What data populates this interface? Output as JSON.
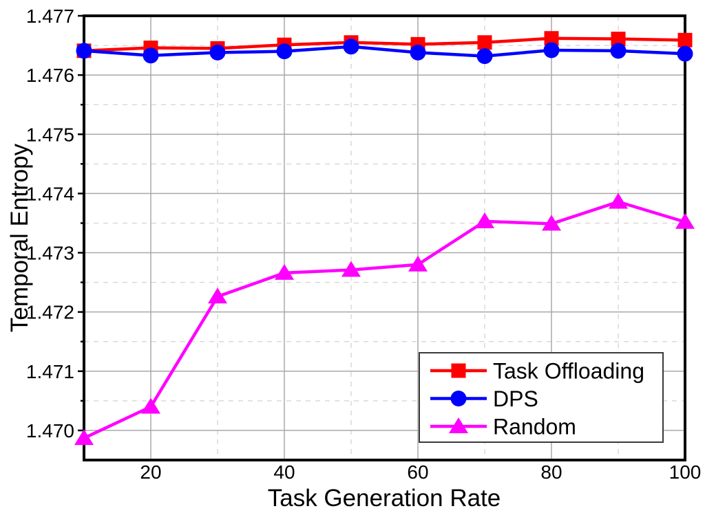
{
  "figure": {
    "background": "#ffffff",
    "frame_color": "#000000",
    "major_grid_color": "#a8a8a8",
    "minor_grid_color": "#d9d9d9"
  },
  "chart_data": {
    "type": "line",
    "title": "",
    "xlabel": "Task Generation Rate",
    "ylabel": "Temporal Entropy",
    "xlim": [
      10,
      100
    ],
    "ylim": [
      1.4695,
      1.477
    ],
    "grid": "major solid gray at every tick, minor dashed light-gray at midpoints",
    "legend_position": "bottom-right",
    "x": [
      10,
      20,
      30,
      40,
      50,
      60,
      70,
      80,
      90,
      100
    ],
    "x_major_ticks": [
      20,
      40,
      60,
      80,
      100
    ],
    "x_tick_labels": [
      "20",
      "40",
      "60",
      "80",
      "100"
    ],
    "x_minor_gridlines": [
      30,
      50,
      70,
      90
    ],
    "y_major_ticks": [
      1.47,
      1.471,
      1.472,
      1.473,
      1.474,
      1.475,
      1.476,
      1.477
    ],
    "y_tick_labels": [
      "1.470",
      "1.471",
      "1.472",
      "1.473",
      "1.474",
      "1.475",
      "1.476",
      "1.477"
    ],
    "y_minor_gridlines": [
      1.4705,
      1.4715,
      1.4725,
      1.4735,
      1.4745,
      1.4755,
      1.4765
    ],
    "series": [
      {
        "name": "Task Offloading",
        "color": "#ff0000",
        "marker": "square",
        "values": [
          1.47641,
          1.47646,
          1.47645,
          1.47651,
          1.47655,
          1.47652,
          1.47655,
          1.47662,
          1.47661,
          1.47659
        ]
      },
      {
        "name": "DPS",
        "color": "#0000ff",
        "marker": "circle",
        "values": [
          1.47641,
          1.47633,
          1.47638,
          1.4764,
          1.47648,
          1.47638,
          1.47632,
          1.47642,
          1.47641,
          1.47636
        ]
      },
      {
        "name": "Random",
        "color": "#ff00ff",
        "marker": "triangle",
        "values": [
          1.46987,
          1.4704,
          1.47226,
          1.47266,
          1.47271,
          1.4728,
          1.47353,
          1.47349,
          1.47386,
          1.47352
        ]
      }
    ]
  }
}
